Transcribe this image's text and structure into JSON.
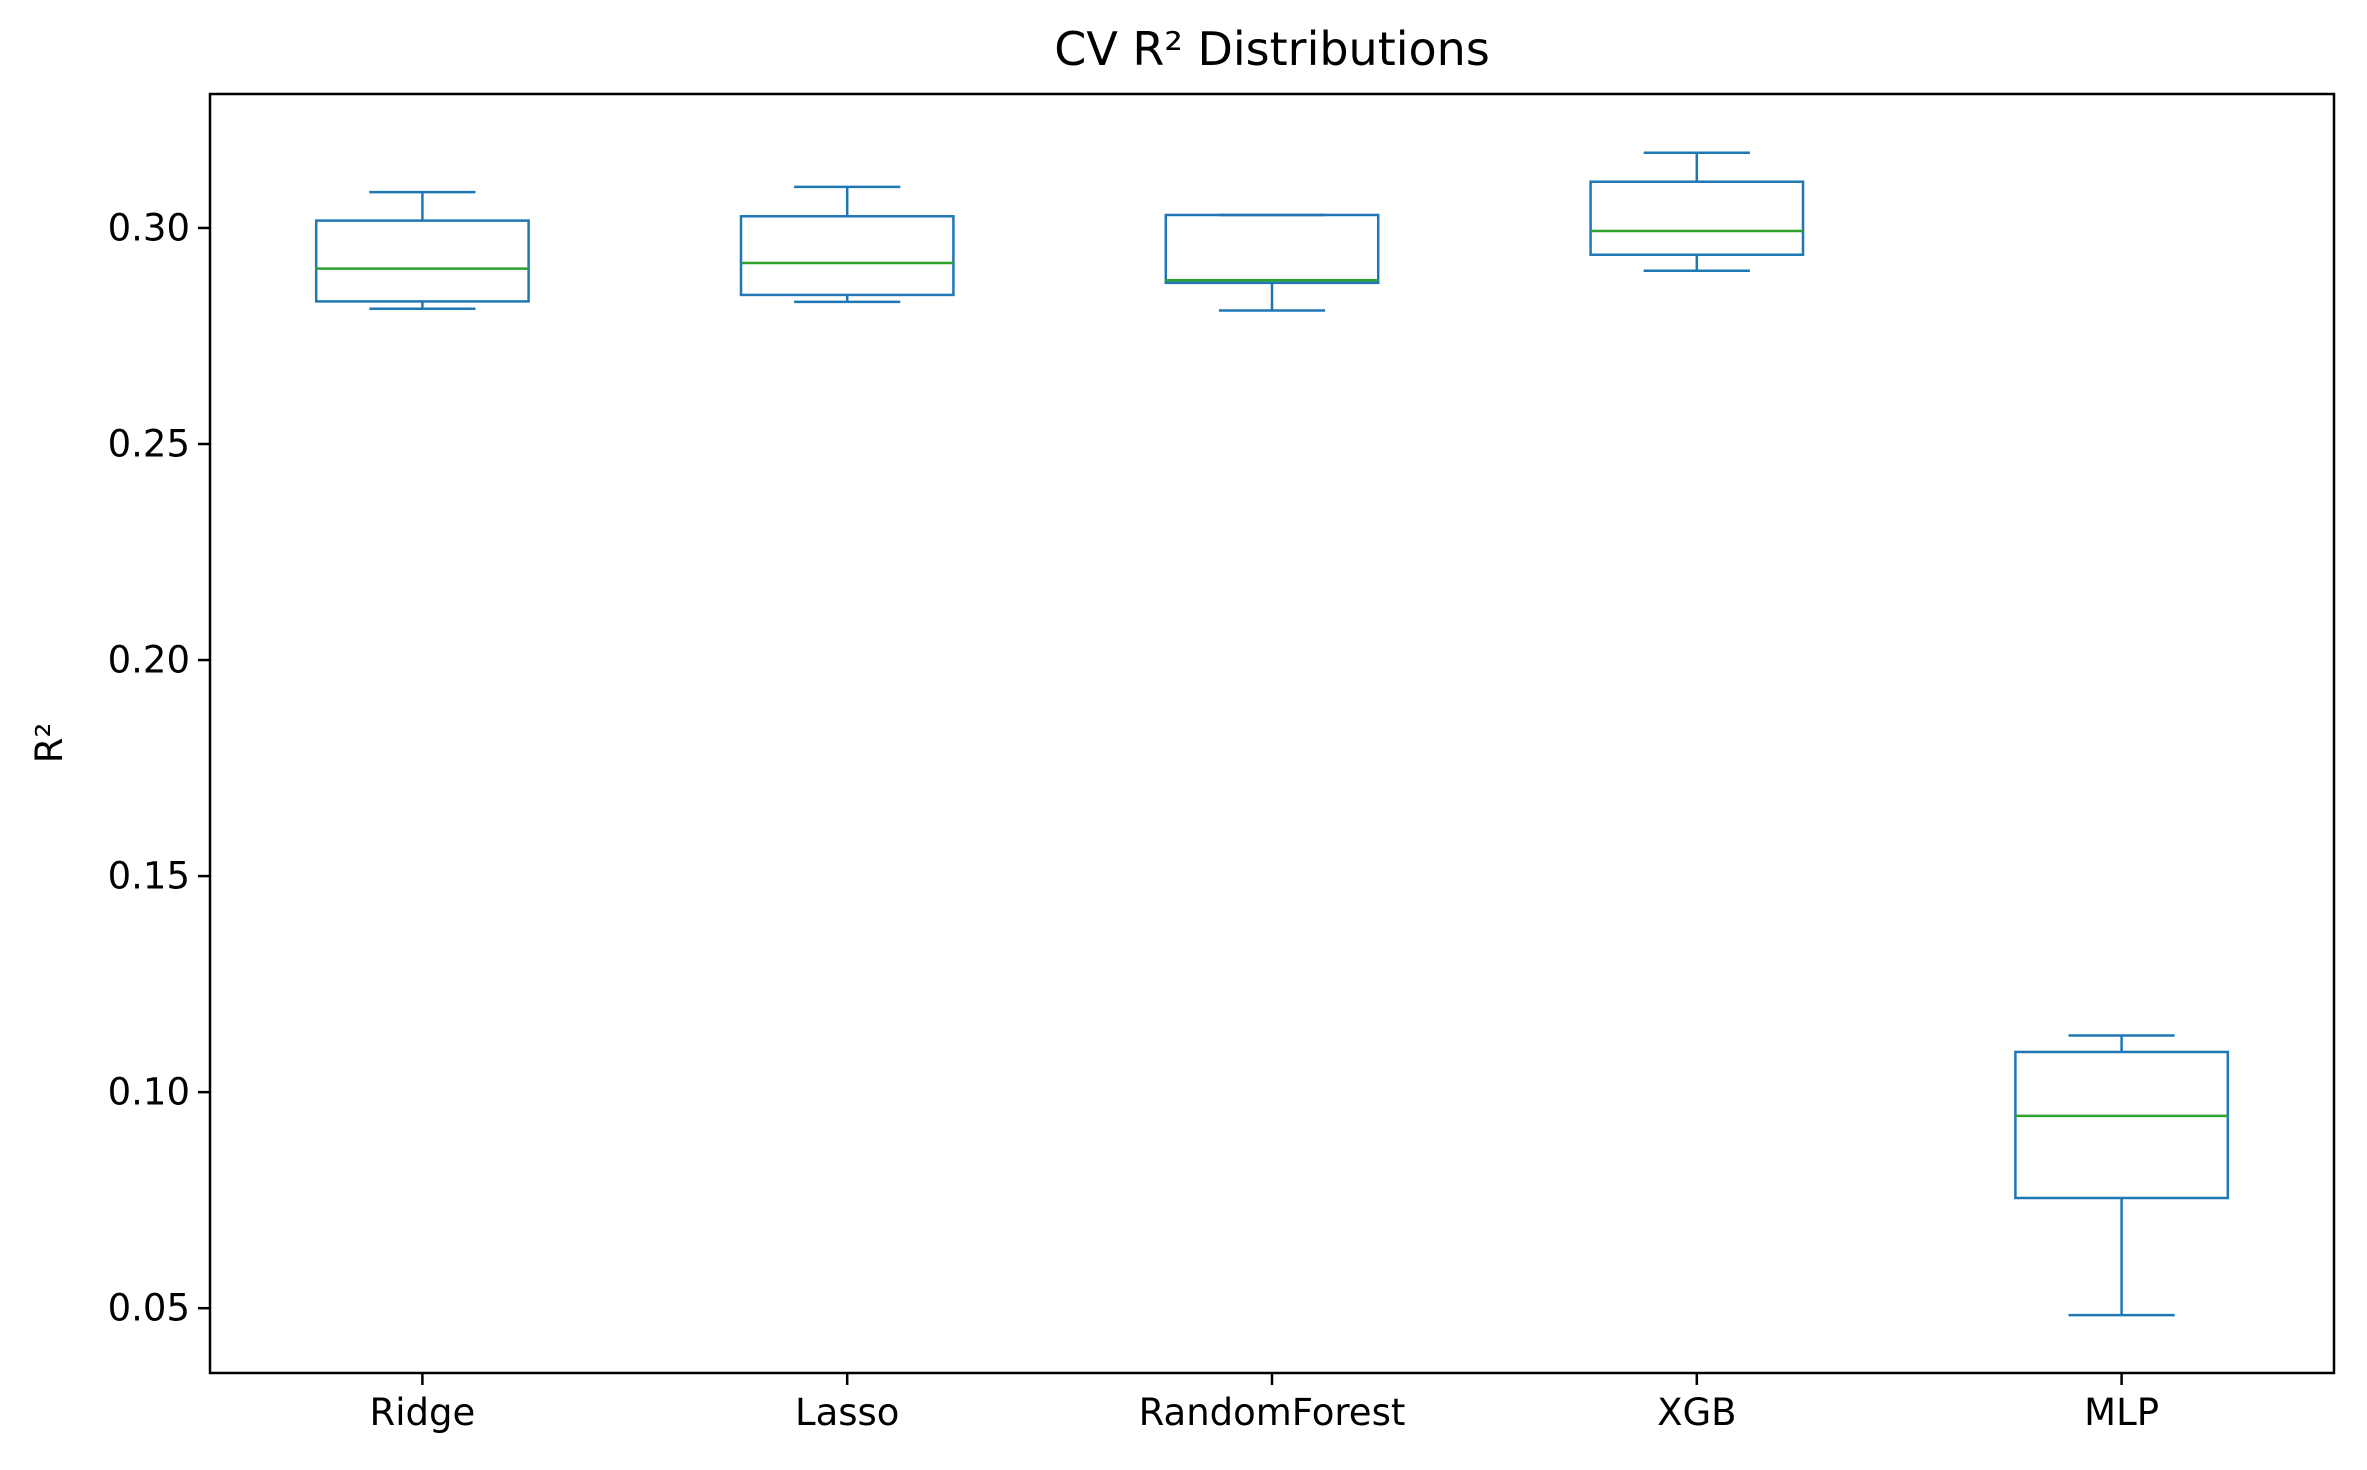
{
  "chart_data": {
    "type": "box",
    "title": "CV R² Distributions",
    "xlabel": "",
    "ylabel": "R²",
    "ylim": [
      0.035,
      0.331
    ],
    "yticks": [
      0.05,
      0.1,
      0.15,
      0.2,
      0.25,
      0.3
    ],
    "ytick_labels": [
      "0.05",
      "0.10",
      "0.15",
      "0.20",
      "0.25",
      "0.30"
    ],
    "categories": [
      "Ridge",
      "Lasso",
      "RandomForest",
      "XGB",
      "MLP"
    ],
    "boxes": [
      {
        "name": "Ridge",
        "whisker_low": 0.2813,
        "q1": 0.283,
        "median": 0.2906,
        "q3": 0.3017,
        "whisker_high": 0.3083
      },
      {
        "name": "Lasso",
        "whisker_low": 0.2829,
        "q1": 0.2845,
        "median": 0.2919,
        "q3": 0.3027,
        "whisker_high": 0.3095
      },
      {
        "name": "RandomForest",
        "whisker_low": 0.2809,
        "q1": 0.2873,
        "median": 0.2879,
        "q3": 0.303,
        "whisker_high": 0.303
      },
      {
        "name": "XGB",
        "whisker_low": 0.2901,
        "q1": 0.2938,
        "median": 0.2993,
        "q3": 0.3107,
        "whisker_high": 0.3174
      },
      {
        "name": "MLP",
        "whisker_low": 0.0484,
        "q1": 0.0755,
        "median": 0.0945,
        "q3": 0.1093,
        "whisker_high": 0.1131
      }
    ],
    "colors": {
      "box": "#1f77b4",
      "median": "#2ca02c",
      "axes": "#000000",
      "background": "#ffffff"
    },
    "grid": false,
    "legend": "none"
  }
}
